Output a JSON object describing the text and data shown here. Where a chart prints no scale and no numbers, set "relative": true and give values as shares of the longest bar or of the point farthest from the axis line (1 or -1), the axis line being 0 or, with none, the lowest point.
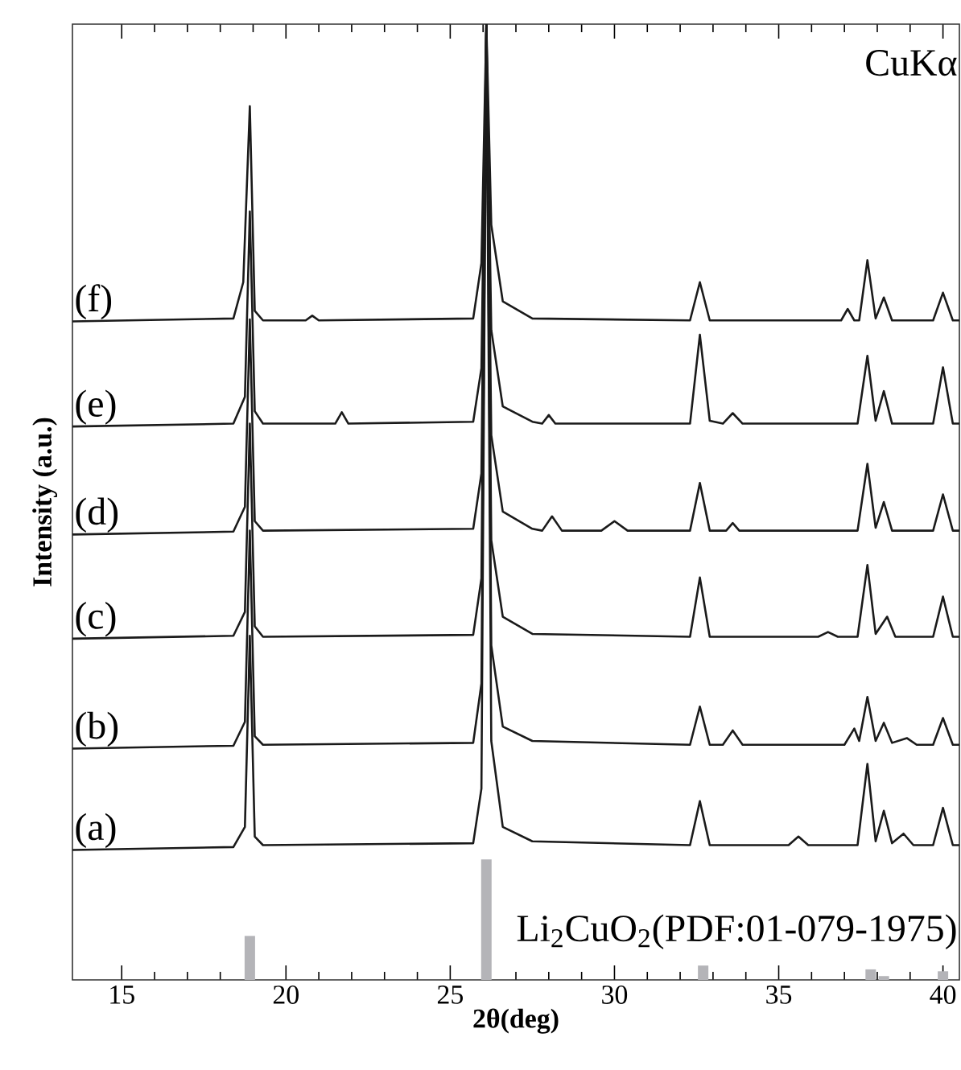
{
  "chart_data": {
    "type": "line",
    "relative": true,
    "xlabel": "2θ(deg)",
    "ylabel": "Intensity (a.u.)",
    "xlim": [
      13.5,
      40.5
    ],
    "xticks": [
      15,
      20,
      25,
      30,
      35,
      40
    ],
    "line_style": "solid",
    "annotations": [
      "CuKα",
      "Li$_{2}$CuO$_{2}$(PDF:01-079-1975)"
    ],
    "series": [
      {
        "name": "(a)",
        "color": "#1a1a1a",
        "x": [
          13.5,
          18.4,
          18.75,
          18.9,
          19.05,
          19.3,
          25.7,
          25.95,
          26.1,
          26.25,
          26.6,
          27.5,
          32.3,
          32.6,
          32.9,
          35.3,
          35.6,
          35.9,
          37.4,
          37.7,
          37.95,
          38.2,
          38.45,
          38.8,
          39.1,
          39.7,
          40.0,
          40.3,
          40.5
        ],
        "values": [
          0.136,
          0.139,
          0.16,
          0.36,
          0.15,
          0.141,
          0.143,
          0.2,
          1,
          0.25,
          0.16,
          0.145,
          0.141,
          0.187,
          0.141,
          0.141,
          0.15,
          0.141,
          0.141,
          0.226,
          0.145,
          0.177,
          0.143,
          0.153,
          0.141,
          0.141,
          0.18,
          0.141,
          0.141
        ]
      },
      {
        "name": "(b)",
        "color": "#1a1a1a",
        "x": [
          13.5,
          18.4,
          18.75,
          18.9,
          19.05,
          19.3,
          25.7,
          25.95,
          26.1,
          26.25,
          26.6,
          27.5,
          32.3,
          32.6,
          32.9,
          33.3,
          33.6,
          33.9,
          37.0,
          37.3,
          37.45,
          37.7,
          37.95,
          38.2,
          38.45,
          38.9,
          39.2,
          39.7,
          40.0,
          40.3,
          40.5
        ],
        "values": [
          0.242,
          0.245,
          0.27,
          0.47,
          0.255,
          0.246,
          0.248,
          0.31,
          1,
          0.35,
          0.265,
          0.25,
          0.246,
          0.286,
          0.246,
          0.246,
          0.261,
          0.246,
          0.246,
          0.263,
          0.25,
          0.296,
          0.25,
          0.269,
          0.248,
          0.253,
          0.246,
          0.246,
          0.274,
          0.246,
          0.246
        ]
      },
      {
        "name": "(c)",
        "color": "#1a1a1a",
        "x": [
          13.5,
          18.4,
          18.75,
          18.9,
          19.05,
          19.3,
          25.7,
          25.95,
          26.1,
          26.25,
          26.6,
          27.5,
          32.3,
          32.6,
          32.9,
          36.2,
          36.5,
          36.8,
          37.4,
          37.7,
          37.95,
          38.3,
          38.55,
          39.7,
          40.0,
          40.3,
          40.5
        ],
        "values": [
          0.357,
          0.36,
          0.385,
          0.582,
          0.37,
          0.359,
          0.361,
          0.42,
          1,
          0.46,
          0.38,
          0.362,
          0.359,
          0.421,
          0.359,
          0.359,
          0.364,
          0.359,
          0.359,
          0.434,
          0.362,
          0.38,
          0.359,
          0.359,
          0.401,
          0.359,
          0.359
        ]
      },
      {
        "name": "(d)",
        "color": "#1a1a1a",
        "x": [
          13.5,
          18.4,
          18.75,
          18.9,
          19.05,
          19.3,
          25.7,
          25.95,
          26.1,
          26.25,
          26.6,
          27.5,
          27.8,
          28.1,
          28.4,
          29.6,
          30.0,
          30.4,
          32.3,
          32.6,
          32.9,
          33.4,
          33.6,
          33.8,
          37.4,
          37.7,
          37.95,
          38.2,
          38.45,
          39.7,
          40.0,
          40.3,
          40.5
        ],
        "values": [
          0.466,
          0.469,
          0.495,
          0.691,
          0.48,
          0.47,
          0.472,
          0.53,
          1,
          0.57,
          0.49,
          0.472,
          0.47,
          0.485,
          0.47,
          0.47,
          0.48,
          0.47,
          0.47,
          0.52,
          0.47,
          0.47,
          0.478,
          0.47,
          0.47,
          0.54,
          0.473,
          0.5,
          0.47,
          0.47,
          0.508,
          0.47,
          0.47
        ]
      },
      {
        "name": "(e)",
        "color": "#1a1a1a",
        "x": [
          13.5,
          18.4,
          18.75,
          18.9,
          19.05,
          19.3,
          21.5,
          21.7,
          21.9,
          25.7,
          25.95,
          26.1,
          26.25,
          26.6,
          27.5,
          27.8,
          28.0,
          28.2,
          32.3,
          32.6,
          32.9,
          33.3,
          33.6,
          33.9,
          37.4,
          37.7,
          37.95,
          38.2,
          38.45,
          39.7,
          40.0,
          40.3,
          40.5
        ],
        "values": [
          0.579,
          0.582,
          0.61,
          0.804,
          0.595,
          0.582,
          0.582,
          0.594,
          0.582,
          0.584,
          0.64,
          1,
          0.68,
          0.6,
          0.584,
          0.582,
          0.591,
          0.582,
          0.582,
          0.675,
          0.585,
          0.582,
          0.593,
          0.582,
          0.582,
          0.653,
          0.585,
          0.616,
          0.582,
          0.582,
          0.641,
          0.582,
          0.582
        ]
      },
      {
        "name": "(f)",
        "color": "#1a1a1a",
        "x": [
          13.5,
          18.4,
          18.7,
          18.9,
          19.05,
          19.3,
          20.6,
          20.8,
          21.0,
          25.7,
          25.95,
          26.1,
          26.25,
          26.6,
          27.5,
          32.3,
          32.6,
          32.9,
          36.9,
          37.1,
          37.3,
          37.45,
          37.7,
          37.95,
          38.2,
          38.45,
          39.7,
          40.0,
          40.3,
          40.5
        ],
        "values": [
          0.689,
          0.692,
          0.73,
          0.914,
          0.7,
          0.69,
          0.69,
          0.695,
          0.69,
          0.692,
          0.75,
          1,
          0.79,
          0.71,
          0.692,
          0.69,
          0.73,
          0.69,
          0.69,
          0.702,
          0.69,
          0.69,
          0.753,
          0.692,
          0.714,
          0.69,
          0.69,
          0.719,
          0.69,
          0.69
        ]
      },
      {
        "type": "bar",
        "color": "#b4b4b8",
        "x": [
          18.9,
          26.1,
          32.7,
          37.8,
          38.2,
          40.0
        ],
        "values": [
          0.046,
          0.126,
          0.015,
          0.011,
          0.004,
          0.009
        ]
      }
    ]
  }
}
